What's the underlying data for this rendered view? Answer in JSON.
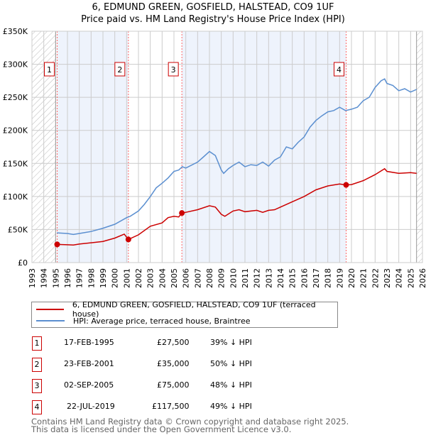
{
  "title": "6, EDMUND GREEN, GOSFIELD, HALSTEAD, CO9 1UF",
  "subtitle": "Price paid vs. HM Land Registry's House Price Index (HPI)",
  "chart_data": {
    "type": "line",
    "xlim": [
      1993,
      2026
    ],
    "ylim": [
      0,
      350000
    ],
    "x_ticks": [
      "1993",
      "1994",
      "1995",
      "1996",
      "1997",
      "1998",
      "1999",
      "2000",
      "2001",
      "2002",
      "2003",
      "2004",
      "2005",
      "2006",
      "2007",
      "2008",
      "2009",
      "2010",
      "2011",
      "2012",
      "2013",
      "2014",
      "2015",
      "2016",
      "2017",
      "2018",
      "2019",
      "2020",
      "2021",
      "2022",
      "2023",
      "2024",
      "2025",
      "2026"
    ],
    "y_ticks": [
      {
        "v": 0,
        "label": "£0"
      },
      {
        "v": 50000,
        "label": "£50K"
      },
      {
        "v": 100000,
        "label": "£100K"
      },
      {
        "v": 150000,
        "label": "£150K"
      },
      {
        "v": 200000,
        "label": "£200K"
      },
      {
        "v": 250000,
        "label": "£250K"
      },
      {
        "v": 300000,
        "label": "£300K"
      },
      {
        "v": 350000,
        "label": "£350K"
      }
    ],
    "grid": true,
    "colors": {
      "property": "#cc0000",
      "hpi": "#5b8fd0",
      "shade": "#eef3fc"
    },
    "hatch_ranges": [
      [
        1993,
        1995.0
      ],
      [
        2025.5,
        2026
      ]
    ],
    "series": [
      {
        "name": "6, EDMUND GREEN, GOSFIELD, HALSTEAD, CO9 1UF (terraced house)",
        "key": "property",
        "x": [
          1995.13,
          1996,
          1996.5,
          1997,
          1998,
          1999,
          2000,
          2000.8,
          2001.15,
          2002,
          2003,
          2004,
          2004.5,
          2005,
          2005.4,
          2005.67,
          2006,
          2007,
          2008,
          2008.5,
          2009,
          2009.3,
          2010,
          2010.5,
          2011,
          2012,
          2012.5,
          2013,
          2013.5,
          2014,
          2015,
          2016,
          2017,
          2018,
          2019,
          2019.55,
          2020,
          2021,
          2022,
          2022.8,
          2023,
          2024,
          2025,
          2025.5
        ],
        "y": [
          27500,
          27000,
          26500,
          28000,
          30000,
          32000,
          37000,
          43000,
          35000,
          42000,
          55000,
          60000,
          68000,
          70000,
          69000,
          75000,
          76000,
          80000,
          86000,
          84000,
          73000,
          70000,
          78000,
          80000,
          77000,
          79000,
          76000,
          79000,
          80000,
          84000,
          92000,
          100000,
          110000,
          116000,
          119000,
          117500,
          118000,
          124000,
          133000,
          142000,
          138000,
          135000,
          136000,
          135000
        ]
      },
      {
        "name": "HPI: Average price, terraced house, Braintree",
        "key": "hpi",
        "x": [
          1995.1,
          1996,
          1996.5,
          1997,
          1998,
          1999,
          2000,
          2001,
          2001.3,
          2002,
          2002.5,
          2003,
          2003.5,
          2004,
          2004.5,
          2005,
          2005.4,
          2005.7,
          2006,
          2007,
          2007.5,
          2008,
          2008.5,
          2009,
          2009.2,
          2009.6,
          2010,
          2010.5,
          2011,
          2011.5,
          2012,
          2012.5,
          2013,
          2013.5,
          2014,
          2014.5,
          2015,
          2015.5,
          2016,
          2016.5,
          2017,
          2017.5,
          2018,
          2018.5,
          2019,
          2019.5,
          2020,
          2020.5,
          2021,
          2021.5,
          2022,
          2022.5,
          2022.8,
          2023,
          2023.5,
          2024,
          2024.5,
          2025,
          2025.5
        ],
        "y": [
          45000,
          44000,
          42500,
          44000,
          47000,
          52000,
          58000,
          68000,
          70000,
          78000,
          88000,
          100000,
          113000,
          120000,
          128000,
          138000,
          140000,
          145000,
          143000,
          152000,
          160000,
          168000,
          162000,
          140000,
          135000,
          142000,
          147000,
          152000,
          145000,
          148000,
          147000,
          152000,
          146000,
          155000,
          160000,
          175000,
          172000,
          182000,
          190000,
          205000,
          215000,
          222000,
          228000,
          230000,
          235000,
          230000,
          232000,
          235000,
          245000,
          250000,
          265000,
          275000,
          278000,
          271000,
          268000,
          260000,
          263000,
          258000,
          262000
        ]
      }
    ],
    "annotations": [
      {
        "label": "1",
        "x": 1995.13,
        "y": 27500
      },
      {
        "label": "2",
        "x": 2001.15,
        "y": 35000
      },
      {
        "label": "3",
        "x": 2005.67,
        "y": 75000
      },
      {
        "label": "4",
        "x": 2019.55,
        "y": 117500
      }
    ],
    "legend": "bottom"
  },
  "legend": {
    "property": "6, EDMUND GREEN, GOSFIELD, HALSTEAD, CO9 1UF (terraced house)",
    "hpi": "HPI: Average price, terraced house, Braintree"
  },
  "sales": [
    {
      "num": "1",
      "date": "17-FEB-1995",
      "price": "£27,500",
      "hpi": "39% ↓ HPI"
    },
    {
      "num": "2",
      "date": "23-FEB-2001",
      "price": "£35,000",
      "hpi": "50% ↓ HPI"
    },
    {
      "num": "3",
      "date": "02-SEP-2005",
      "price": "£75,000",
      "hpi": "48% ↓ HPI"
    },
    {
      "num": "4",
      "date": "22-JUL-2019",
      "price": "£117,500",
      "hpi": "49% ↓ HPI"
    }
  ],
  "footer": {
    "line1": "Contains HM Land Registry data © Crown copyright and database right 2025.",
    "line2": "This data is licensed under the Open Government Licence v3.0."
  }
}
